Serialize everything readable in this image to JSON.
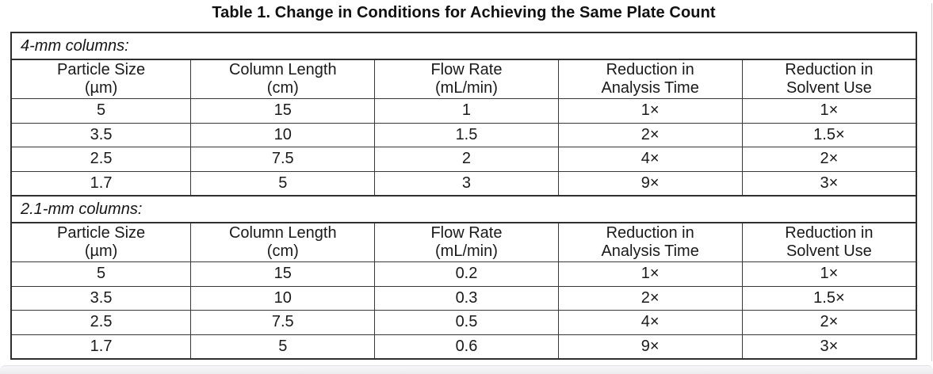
{
  "title": "Table 1. Change in Conditions for Achieving the Same Plate Count",
  "colors": {
    "text": "#1a1a1a",
    "table_border": "#2f2f2f",
    "inner_line": "#383838",
    "page_edge_line": "#cfcfd4",
    "footer_bar": "#ececef"
  },
  "sections": [
    {
      "label": "4-mm columns:",
      "headers": [
        {
          "line1": "Particle Size",
          "line2": "(µm)"
        },
        {
          "line1": "Column Length",
          "line2": "(cm)"
        },
        {
          "line1": "Flow Rate",
          "line2": "(mL/min)"
        },
        {
          "line1": "Reduction in",
          "line2": "Analysis Time"
        },
        {
          "line1": "Reduction in",
          "line2": "Solvent Use"
        }
      ],
      "rows": [
        [
          "5",
          "15",
          "1",
          "1×",
          "1×"
        ],
        [
          "3.5",
          "10",
          "1.5",
          "2×",
          "1.5×"
        ],
        [
          "2.5",
          "7.5",
          "2",
          "4×",
          "2×"
        ],
        [
          "1.7",
          "5",
          "3",
          "9×",
          "3×"
        ]
      ]
    },
    {
      "label": "2.1-mm columns:",
      "headers": [
        {
          "line1": "Particle Size",
          "line2": "(µm)"
        },
        {
          "line1": "Column Length",
          "line2": "(cm)"
        },
        {
          "line1": "Flow Rate",
          "line2": "(mL/min)"
        },
        {
          "line1": "Reduction in",
          "line2": "Analysis Time"
        },
        {
          "line1": "Reduction in",
          "line2": "Solvent Use"
        }
      ],
      "rows": [
        [
          "5",
          "15",
          "0.2",
          "1×",
          "1×"
        ],
        [
          "3.5",
          "10",
          "0.3",
          "2×",
          "1.5×"
        ],
        [
          "2.5",
          "7.5",
          "0.5",
          "4×",
          "2×"
        ],
        [
          "1.7",
          "5",
          "0.6",
          "9×",
          "3×"
        ]
      ]
    }
  ]
}
